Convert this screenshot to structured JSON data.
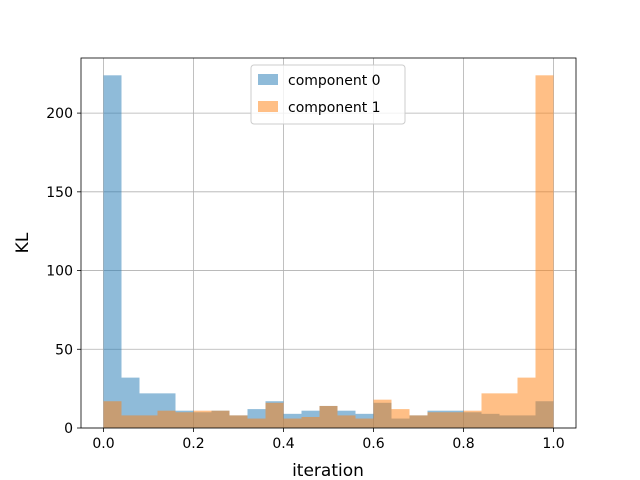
{
  "chart_data": {
    "type": "histogram",
    "xlabel": "iteration",
    "ylabel": "KL",
    "xlim": [
      -0.05,
      1.05
    ],
    "ylim": [
      0,
      235
    ],
    "xticks": [
      0.0,
      0.2,
      0.4,
      0.6,
      0.8,
      1.0
    ],
    "xtick_labels": [
      "0.0",
      "0.2",
      "0.4",
      "0.6",
      "0.8",
      "1.0"
    ],
    "yticks": [
      0,
      50,
      100,
      150,
      200
    ],
    "ytick_labels": [
      "0",
      "50",
      "100",
      "150",
      "200"
    ],
    "grid": true,
    "legend_position": "top-center",
    "bin_edges": [
      0.0,
      0.04,
      0.08,
      0.12,
      0.16,
      0.2,
      0.24,
      0.28,
      0.32,
      0.36,
      0.4,
      0.44,
      0.48,
      0.52,
      0.56,
      0.6,
      0.64,
      0.68,
      0.72,
      0.76,
      0.8,
      0.84,
      0.88,
      0.92,
      0.96,
      1.0
    ],
    "series": [
      {
        "name": "component 0",
        "color": "#1f77b4",
        "values": [
          224,
          32,
          22,
          22,
          11,
          10,
          11,
          8,
          12,
          17,
          9,
          11,
          14,
          11,
          9,
          16,
          6,
          8,
          11,
          11,
          10,
          9,
          8,
          8,
          17
        ]
      },
      {
        "name": "component 1",
        "color": "#ff7f0e",
        "values": [
          17,
          8,
          8,
          11,
          10,
          11,
          11,
          8,
          6,
          16,
          6,
          7,
          14,
          8,
          6,
          18,
          12,
          8,
          10,
          10,
          11,
          22,
          22,
          32,
          224
        ]
      }
    ]
  }
}
